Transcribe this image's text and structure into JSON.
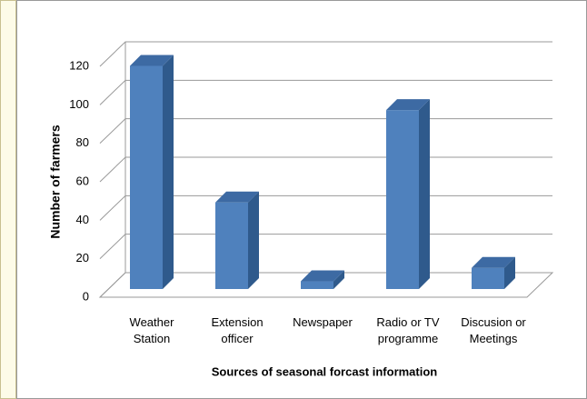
{
  "chart_data": {
    "type": "bar",
    "categories": [
      "Weather Station",
      "Extension officer",
      "Newspaper",
      "Radio or TV programme",
      "Discusion or Meetings"
    ],
    "values": [
      116,
      45,
      4,
      93,
      11
    ],
    "color": "#4f81bd",
    "ylim": [
      0,
      120
    ],
    "yticks": [
      0,
      20,
      40,
      60,
      80,
      100,
      120
    ],
    "grid": true,
    "y_label": "Number of farmers",
    "x_label": "Sources of seasonal forcast information"
  }
}
